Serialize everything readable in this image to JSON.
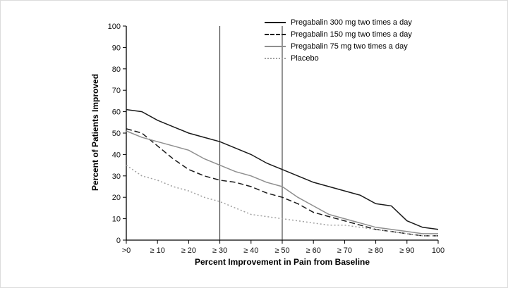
{
  "chart_data": {
    "type": "line",
    "title": "",
    "xlabel": "Percent Improvement in Pain from Baseline",
    "ylabel": "Percent of Patients Improved",
    "xlim": [
      0,
      100
    ],
    "ylim": [
      0,
      100
    ],
    "grid": false,
    "legend_position": "top-right",
    "axis_color": "#000000",
    "reference_line_color": "#2b2b2b",
    "reference_lines_x": [
      30,
      50
    ],
    "y_tick_values": [
      0,
      10,
      20,
      30,
      40,
      50,
      60,
      70,
      80,
      90,
      100
    ],
    "x_tick_values": [
      0,
      10,
      20,
      30,
      40,
      50,
      60,
      70,
      80,
      90,
      100
    ],
    "x_tick_labels": [
      ">0",
      "≥ 10",
      "≥ 20",
      "≥ 30",
      "≥ 40",
      "≥ 50",
      "≥ 60",
      "≥ 70",
      "≥ 80",
      "≥ 90",
      "100"
    ],
    "x": [
      0,
      5,
      10,
      15,
      20,
      25,
      30,
      35,
      40,
      45,
      50,
      55,
      60,
      65,
      70,
      75,
      80,
      85,
      90,
      95,
      100
    ],
    "series": [
      {
        "name": "Pregabalin 300 mg two times a day",
        "color": "#1a1a1a",
        "line_style": "solid",
        "values": [
          61,
          60,
          56,
          53,
          50,
          48,
          46,
          43,
          40,
          36,
          33,
          30,
          27,
          25,
          23,
          21,
          17,
          16,
          9,
          6,
          5
        ]
      },
      {
        "name": "Pregabalin 150 mg two times a day",
        "color": "#1a1a1a",
        "line_style": "dashed",
        "values": [
          52,
          50,
          44,
          38,
          33,
          30,
          28,
          27,
          25,
          22,
          20,
          17,
          13,
          11,
          9,
          7,
          5,
          4,
          3,
          2,
          2
        ]
      },
      {
        "name": "Pregabalin 75 mg two times a day",
        "color": "#8f8f8f",
        "line_style": "solid",
        "values": [
          51,
          48,
          46,
          44,
          42,
          38,
          35,
          32,
          30,
          27,
          25,
          20,
          16,
          12,
          10,
          8,
          6,
          5,
          4,
          3,
          3
        ]
      },
      {
        "name": "Placebo",
        "color": "#a0a0a0",
        "line_style": "dotted",
        "values": [
          35,
          30,
          28,
          25,
          23,
          20,
          18,
          15,
          12,
          11,
          10,
          9,
          8,
          7,
          7,
          6,
          5,
          4,
          3,
          2,
          2
        ]
      }
    ]
  }
}
